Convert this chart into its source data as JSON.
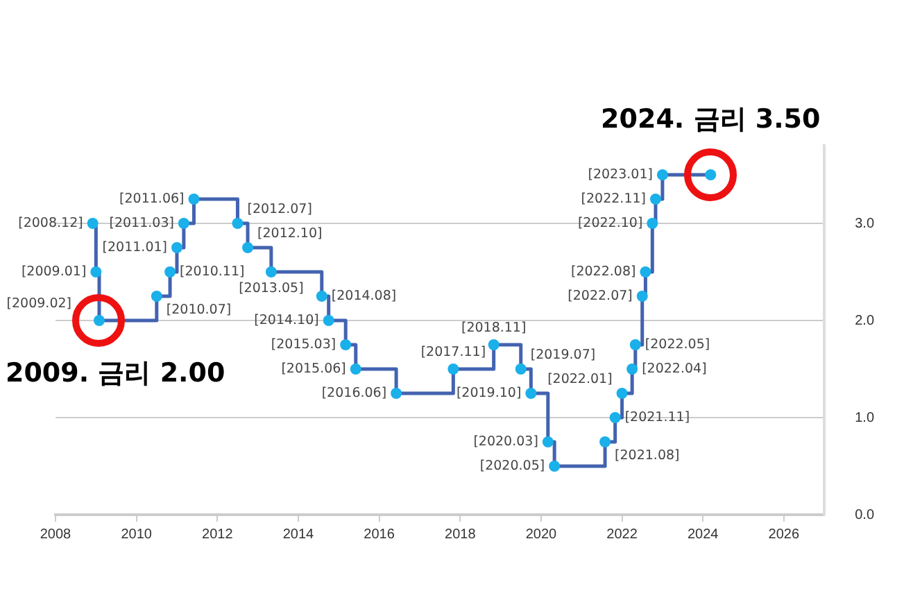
{
  "chart_data": {
    "type": "step",
    "x": [
      2008.92,
      2009.0,
      2009.08,
      2010.5,
      2010.83,
      2011.0,
      2011.17,
      2011.42,
      2012.5,
      2012.75,
      2013.33,
      2014.58,
      2014.75,
      2015.17,
      2015.42,
      2016.42,
      2017.83,
      2018.83,
      2019.5,
      2019.75,
      2020.17,
      2020.33,
      2021.58,
      2021.83,
      2022.0,
      2022.25,
      2022.33,
      2022.5,
      2022.58,
      2022.75,
      2022.83,
      2023.0,
      2024.19
    ],
    "series": [
      {
        "color": "#4363b0",
        "values": [
          3.0,
          2.5,
          2.0,
          2.25,
          2.5,
          2.75,
          3.0,
          3.25,
          3.0,
          2.75,
          2.5,
          2.25,
          2.0,
          1.75,
          1.5,
          1.25,
          1.5,
          1.75,
          1.5,
          1.25,
          0.75,
          0.5,
          0.75,
          1.0,
          1.25,
          1.5,
          1.75,
          2.25,
          2.5,
          3.0,
          3.25,
          3.5,
          3.5
        ]
      }
    ],
    "marker": "circle",
    "line_style": "solid",
    "xlim": [
      2008,
      2027
    ],
    "xticks": [
      2008,
      2010,
      2012,
      2014,
      2016,
      2018,
      2020,
      2022,
      2024,
      2026
    ],
    "ylim": [
      0,
      3.8
    ],
    "yticks": [
      {
        "value": 0,
        "label": "0.0"
      },
      {
        "value": 1,
        "label": "1.0"
      },
      {
        "value": 2,
        "label": "2.0"
      },
      {
        "value": 3,
        "label": "3.0"
      }
    ],
    "grid": "y",
    "legend": false,
    "annotations": [
      {
        "text": "2009. 금리 2.00",
        "x": 2009.08,
        "y": 2.0
      },
      {
        "text": "2024. 금리 3.50",
        "x": 2024.19,
        "y": 3.5
      },
      {
        "text": "[2008.12]",
        "x": 2008.92,
        "y": 3.0
      },
      {
        "text": "[2009.01]",
        "x": 2009.0,
        "y": 2.5
      },
      {
        "text": "[2009.02]",
        "x": 2009.08,
        "y": 2.0
      },
      {
        "text": "[2010.07]",
        "x": 2010.5,
        "y": 2.25
      },
      {
        "text": "[2010.11]",
        "x": 2010.83,
        "y": 2.5
      },
      {
        "text": "[2011.01]",
        "x": 2011.0,
        "y": 2.75
      },
      {
        "text": "[2011.03]",
        "x": 2011.17,
        "y": 3.0
      },
      {
        "text": "[2011.06]",
        "x": 2011.42,
        "y": 3.25
      },
      {
        "text": "[2012.07]",
        "x": 2012.5,
        "y": 3.0
      },
      {
        "text": "[2012.10]",
        "x": 2012.75,
        "y": 2.75
      },
      {
        "text": "[2013.05]",
        "x": 2013.33,
        "y": 2.5
      },
      {
        "text": "[2014.08]",
        "x": 2014.58,
        "y": 2.25
      },
      {
        "text": "[2014.10]",
        "x": 2014.75,
        "y": 2.0
      },
      {
        "text": "[2015.03]",
        "x": 2015.17,
        "y": 1.75
      },
      {
        "text": "[2015.06]",
        "x": 2015.42,
        "y": 1.5
      },
      {
        "text": "[2016.06]",
        "x": 2016.42,
        "y": 1.25
      },
      {
        "text": "[2017.11]",
        "x": 2017.83,
        "y": 1.5
      },
      {
        "text": "[2018.11]",
        "x": 2018.83,
        "y": 1.75
      },
      {
        "text": "[2019.07]",
        "x": 2019.5,
        "y": 1.5
      },
      {
        "text": "[2019.10]",
        "x": 2019.75,
        "y": 1.25
      },
      {
        "text": "[2020.03]",
        "x": 2020.17,
        "y": 0.75
      },
      {
        "text": "[2020.05]",
        "x": 2020.33,
        "y": 0.5
      },
      {
        "text": "[2021.08]",
        "x": 2021.58,
        "y": 0.75
      },
      {
        "text": "[2021.11]",
        "x": 2021.83,
        "y": 1.0
      },
      {
        "text": "[2022.01]",
        "x": 2022.0,
        "y": 1.25
      },
      {
        "text": "[2022.04]",
        "x": 2022.25,
        "y": 1.5
      },
      {
        "text": "[2022.05]",
        "x": 2022.33,
        "y": 1.75
      },
      {
        "text": "[2022.07]",
        "x": 2022.5,
        "y": 2.25
      },
      {
        "text": "[2022.08]",
        "x": 2022.58,
        "y": 2.5
      },
      {
        "text": "[2022.10]",
        "x": 2022.75,
        "y": 3.0
      },
      {
        "text": "[2022.11]",
        "x": 2022.83,
        "y": 3.25
      },
      {
        "text": "[2023.01]",
        "x": 2023.0,
        "y": 3.5
      }
    ]
  }
}
